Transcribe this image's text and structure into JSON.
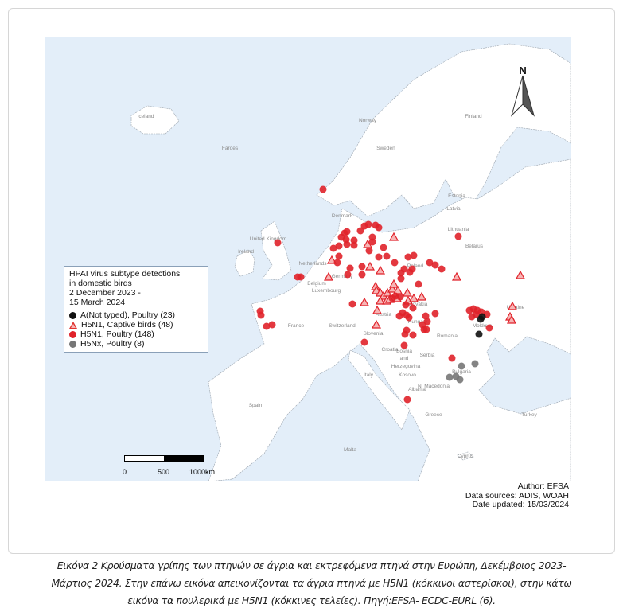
{
  "map": {
    "north_label": "N",
    "countries": [
      "Iceland",
      "Faroes",
      "Norway",
      "Sweden",
      "Finland",
      "Estonia",
      "Latvia",
      "Lithuania",
      "Denmark",
      "United Kingdom",
      "Ireland",
      "Netherlands",
      "Belarus",
      "Poland",
      "Germany",
      "Belgium",
      "Luxembourg",
      "Ukraine",
      "Moldova",
      "France",
      "Switzerland",
      "Austria",
      "Hungary",
      "Slovenia",
      "Slovakia",
      "Romania",
      "Croatia",
      "Bosnia",
      "and",
      "Serbia",
      "Bulgaria",
      "Herzegovina",
      "Kosovo",
      "N. Macedonia",
      "Albania",
      "Italy",
      "Spain",
      "Greece",
      "Turkey",
      "Malta",
      "Cyprus"
    ],
    "colors": {
      "sea": "#e3eef9",
      "land": "#ffffff",
      "poultry_h5n1": "#e0222a",
      "captive_h5n1": "#f7b5b5",
      "not_typed": "#111111",
      "h5nx": "#777777"
    }
  },
  "legend": {
    "title_line1": "HPAI virus subtype detections",
    "title_line2": "in domestic birds",
    "title_line3": "2 December 2023 -",
    "title_line4": "15 March 2024",
    "items": [
      {
        "label": "A(Not typed), Poultry (23)",
        "symbol": "black-circle"
      },
      {
        "label": "H5N1, Captive birds (48)",
        "symbol": "red-triangle"
      },
      {
        "label": "H5N1, Poultry (148)",
        "symbol": "red-circle"
      },
      {
        "label": "H5Nx, Poultry (8)",
        "symbol": "gray-circle"
      }
    ]
  },
  "scale": {
    "ticks": [
      "0",
      "500",
      "1000km"
    ]
  },
  "credits": {
    "author": "Author: EFSA",
    "sources": "Data sources: ADIS, WOAH",
    "updated": "Date updated: 15/03/2024"
  },
  "caption": {
    "line1": "Εικόνα 2 Κρούσματα γρίπης των πτηνών σε άγρια και εκτρεφόμενα πτηνά στην Ευρώπη, Δεκέμβριος 2023-",
    "line2": "Μάρτιος 2024. Στην επάνω εικόνα απεικονίζονται τα άγρια πτηνά με H5N1 (κόκκινοι αστερίσκοι), στην κάτω",
    "line3": "εικόνα τα πουλερικά με H5N1 (κόκκινες τελείες). Πηγή:EFSA- ECDC-EURL (6)."
  }
}
